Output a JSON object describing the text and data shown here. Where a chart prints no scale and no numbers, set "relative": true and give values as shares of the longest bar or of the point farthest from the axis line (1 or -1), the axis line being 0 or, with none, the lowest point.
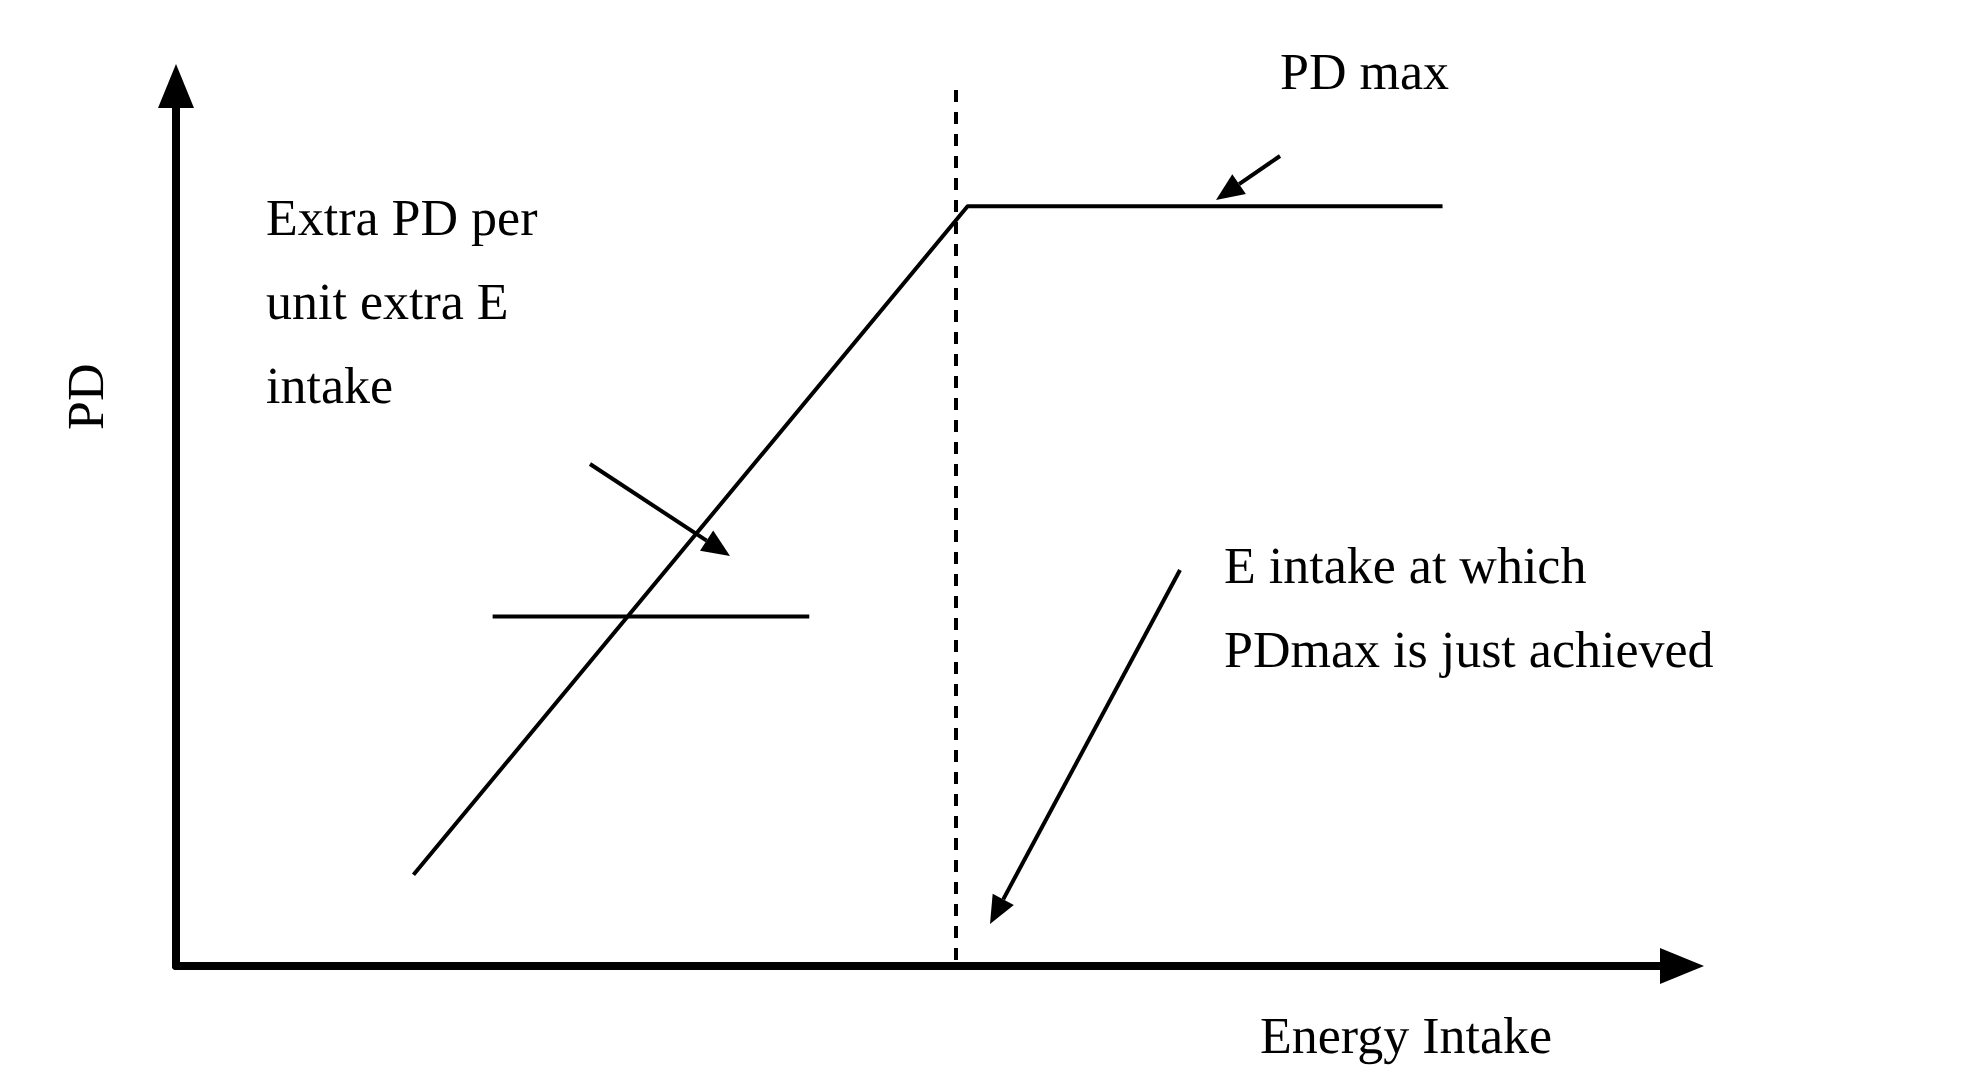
{
  "chart_data": {
    "type": "line",
    "relative": true,
    "xlabel": "Energy Intake",
    "ylabel": "PD",
    "marker": "none",
    "line_style": "solid",
    "grid": false,
    "categories": [
      null,
      null,
      null,
      null,
      null,
      null,
      null,
      null,
      null,
      null,
      null,
      null,
      null,
      null,
      null,
      null,
      null,
      null,
      null,
      null
    ],
    "series": [
      {
        "color": "#000000",
        "values": [
          null,
          null,
          null,
          0.12,
          null,
          null,
          null,
          null,
          null,
          null,
          1,
          null,
          null,
          null,
          null,
          null,
          1,
          null,
          null,
          null
        ]
      },
      {
        "color": "#000000",
        "values": [
          null,
          null,
          null,
          null,
          0.46,
          null,
          null,
          null,
          0.46,
          null,
          null,
          null,
          null,
          null,
          null,
          null,
          null,
          null,
          null,
          null
        ]
      }
    ],
    "annotations": [
      "PD max",
      "Extra PD per\nunit extra E\nintake",
      "E intake at which\nPDmax is just achieved"
    ]
  }
}
